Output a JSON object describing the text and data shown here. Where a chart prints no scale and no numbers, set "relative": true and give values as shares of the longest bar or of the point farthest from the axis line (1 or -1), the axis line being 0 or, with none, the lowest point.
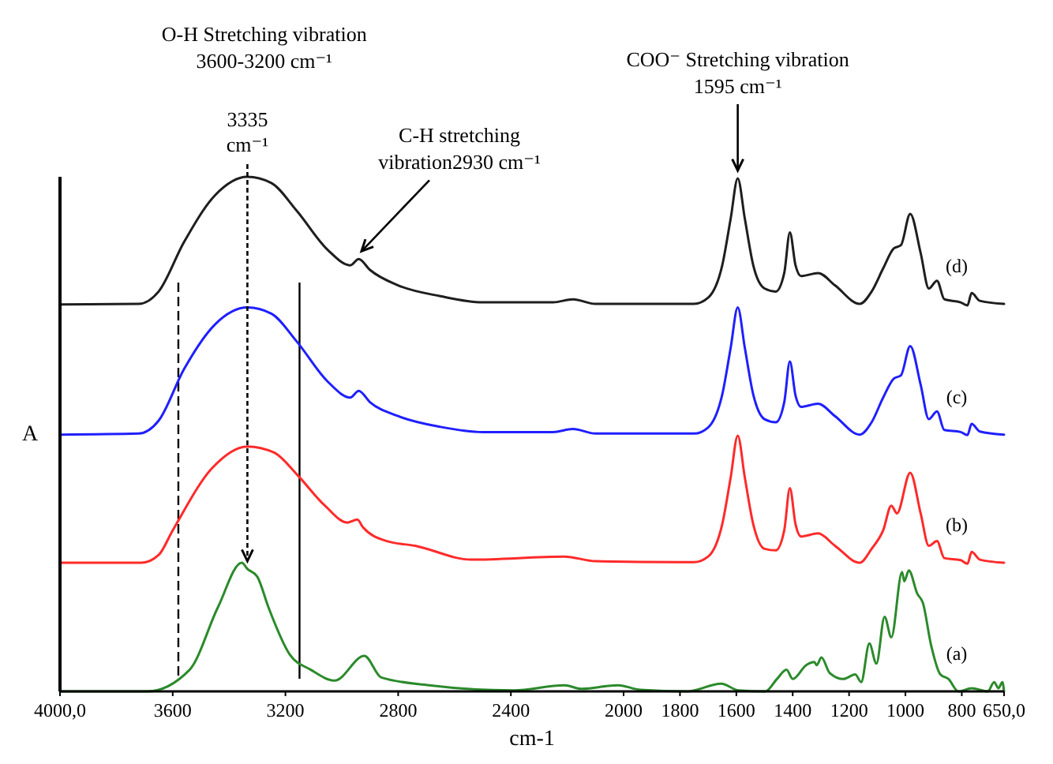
{
  "chart_data": {
    "type": "line",
    "relative": true,
    "xlabel": "cm-1",
    "ylabel": "A",
    "legend": false,
    "grid": false,
    "marker": "none",
    "line_style": "solid",
    "xlim": [
      4000,
      650
    ],
    "xticks": [
      {
        "value": 4000,
        "label": "4000,0"
      },
      3600,
      3200,
      2800,
      2400,
      2000,
      1800,
      1600,
      1400,
      1200,
      1000,
      800,
      {
        "value": 650,
        "label": "650,0"
      }
    ],
    "ref_lines": [
      {
        "axis": "x",
        "value": 3580,
        "color": "#000000",
        "line_style": "dashed"
      },
      {
        "axis": "x",
        "value": 3150,
        "color": "#000000",
        "line_style": "solid"
      }
    ],
    "annotations": [
      "O-H Stretching vibration\n3600-3200 cm⁻¹",
      {
        "text": "3335\ncm⁻¹",
        "x": 3335,
        "y": 0.238
      },
      {
        "text": "C-H stretching\nvibration2930 cm⁻¹",
        "x": 2930,
        "y": 0.84
      },
      {
        "text": "COO⁻ Stretching vibration\n1595 cm⁻¹",
        "x": 1595,
        "y": 0.997
      }
    ],
    "series": [
      {
        "name": "(d)",
        "color": "#1e1e1e",
        "x": [
          4000,
          3720,
          3650,
          3560,
          3450,
          3335,
          3250,
          3160,
          3050,
          2970,
          2940,
          2900,
          2800,
          2650,
          2500,
          2250,
          2180,
          2100,
          2000,
          1800,
          1750,
          1700,
          1650,
          1620,
          1595,
          1570,
          1540,
          1500,
          1460,
          1430,
          1410,
          1390,
          1370,
          1310,
          1250,
          1162,
          1120,
          1079,
          1041,
          1016,
          983,
          946,
          917,
          888,
          862,
          804,
          780,
          765,
          736,
          650
        ],
        "values": [
          0.752,
          0.753,
          0.777,
          0.873,
          0.964,
          1.0,
          0.988,
          0.934,
          0.858,
          0.828,
          0.84,
          0.819,
          0.789,
          0.768,
          0.756,
          0.756,
          0.762,
          0.753,
          0.753,
          0.753,
          0.753,
          0.765,
          0.828,
          0.919,
          0.997,
          0.919,
          0.828,
          0.783,
          0.777,
          0.813,
          0.892,
          0.828,
          0.807,
          0.813,
          0.789,
          0.753,
          0.777,
          0.822,
          0.861,
          0.867,
          0.928,
          0.852,
          0.783,
          0.798,
          0.762,
          0.756,
          0.75,
          0.774,
          0.759,
          0.753
        ]
      },
      {
        "name": "(c)",
        "color": "#1f1fff",
        "x": [
          4000,
          3720,
          3650,
          3560,
          3450,
          3335,
          3250,
          3160,
          3050,
          2970,
          2940,
          2900,
          2800,
          2650,
          2500,
          2250,
          2180,
          2100,
          2000,
          1800,
          1750,
          1700,
          1650,
          1620,
          1595,
          1570,
          1540,
          1500,
          1460,
          1430,
          1410,
          1390,
          1370,
          1310,
          1250,
          1162,
          1120,
          1079,
          1041,
          1016,
          983,
          946,
          917,
          888,
          862,
          804,
          780,
          765,
          736,
          650
        ],
        "values": [
          0.499,
          0.501,
          0.526,
          0.626,
          0.713,
          0.746,
          0.734,
          0.68,
          0.602,
          0.571,
          0.584,
          0.562,
          0.535,
          0.514,
          0.504,
          0.504,
          0.51,
          0.501,
          0.501,
          0.501,
          0.501,
          0.513,
          0.577,
          0.668,
          0.746,
          0.668,
          0.577,
          0.529,
          0.523,
          0.562,
          0.641,
          0.575,
          0.553,
          0.559,
          0.535,
          0.499,
          0.523,
          0.571,
          0.608,
          0.614,
          0.671,
          0.596,
          0.529,
          0.544,
          0.508,
          0.504,
          0.498,
          0.52,
          0.505,
          0.499
        ]
      },
      {
        "name": "(b)",
        "color": "#ff2a2a",
        "x": [
          4000,
          3710,
          3650,
          3600,
          3460,
          3335,
          3240,
          3160,
          3060,
          2980,
          2945,
          2925,
          2840,
          2740,
          2540,
          2210,
          2100,
          1800,
          1750,
          1700,
          1650,
          1620,
          1595,
          1570,
          1540,
          1500,
          1460,
          1430,
          1410,
          1390,
          1370,
          1310,
          1250,
          1162,
          1120,
          1079,
          1050,
          1030,
          983,
          946,
          917,
          888,
          862,
          804,
          780,
          765,
          736,
          650
        ],
        "values": [
          0.25,
          0.25,
          0.265,
          0.313,
          0.434,
          0.476,
          0.464,
          0.422,
          0.361,
          0.328,
          0.334,
          0.319,
          0.292,
          0.283,
          0.256,
          0.262,
          0.253,
          0.251,
          0.251,
          0.262,
          0.325,
          0.416,
          0.497,
          0.416,
          0.325,
          0.277,
          0.274,
          0.313,
          0.395,
          0.325,
          0.301,
          0.307,
          0.283,
          0.25,
          0.277,
          0.313,
          0.361,
          0.346,
          0.425,
          0.346,
          0.283,
          0.292,
          0.259,
          0.255,
          0.248,
          0.271,
          0.256,
          0.25
        ]
      },
      {
        "name": "(a)",
        "color": "#2b8a2b",
        "x": [
          4000,
          3690,
          3540,
          3440,
          3355,
          3335,
          3300,
          3260,
          3185,
          3110,
          3025,
          2920,
          2860,
          2690,
          2390,
          2210,
          2150,
          2020,
          1940,
          1774,
          1654,
          1592,
          1497,
          1456,
          1422,
          1400,
          1352,
          1323,
          1315,
          1298,
          1269,
          1220,
          1178,
          1157,
          1128,
          1103,
          1074,
          1050,
          1012,
          1004,
          988,
          958,
          938,
          909,
          876,
          847,
          812,
          765,
          708,
          685,
          670,
          656,
          650
        ],
        "values": [
          0,
          0,
          0.042,
          0.163,
          0.25,
          0.238,
          0.223,
          0.163,
          0.072,
          0.042,
          0.021,
          0.069,
          0.027,
          0.012,
          0.002,
          0.012,
          0.005,
          0.012,
          0.003,
          0,
          0.015,
          0.002,
          0,
          0.024,
          0.042,
          0.024,
          0.051,
          0.057,
          0.051,
          0.066,
          0.036,
          0.024,
          0.033,
          0.018,
          0.093,
          0.054,
          0.145,
          0.105,
          0.232,
          0.214,
          0.235,
          0.19,
          0.172,
          0.09,
          0.033,
          0.024,
          0,
          0.006,
          0,
          0.018,
          0.006,
          0.018,
          0
        ]
      }
    ]
  }
}
